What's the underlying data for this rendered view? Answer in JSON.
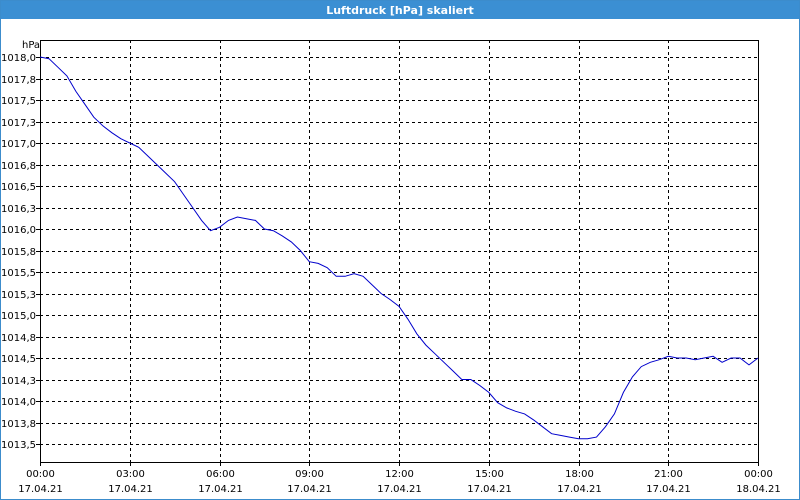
{
  "window": {
    "title": "Luftdruck [hPa] skaliert"
  },
  "chart_data": {
    "type": "line",
    "title": "Luftdruck [hPa] skaliert",
    "xlabel": "",
    "ylabel": "hPa",
    "grid": true,
    "ylim": [
      1013.4,
      1018.0
    ],
    "xlim": [
      0,
      24
    ],
    "yticks": [
      "1018,0",
      "1017,8",
      "1017,5",
      "1017,3",
      "1017,0",
      "1016,8",
      "1016,5",
      "1016,3",
      "1016,0",
      "1015,8",
      "1015,5",
      "1015,3",
      "1015,0",
      "1014,8",
      "1014,5",
      "1014,3",
      "1014,0",
      "1013,8",
      "1013,5"
    ],
    "ytick_values": [
      1018.0,
      1017.75,
      1017.5,
      1017.25,
      1017.0,
      1016.75,
      1016.5,
      1016.25,
      1016.0,
      1015.75,
      1015.5,
      1015.25,
      1015.0,
      1014.75,
      1014.5,
      1014.25,
      1014.0,
      1013.75,
      1013.5
    ],
    "xticks": [
      {
        "time": "00:00",
        "date": "17.04.21"
      },
      {
        "time": "03:00",
        "date": "17.04.21"
      },
      {
        "time": "06:00",
        "date": "17.04.21"
      },
      {
        "time": "09:00",
        "date": "17.04.21"
      },
      {
        "time": "12:00",
        "date": "17.04.21"
      },
      {
        "time": "15:00",
        "date": "17.04.21"
      },
      {
        "time": "18:00",
        "date": "17.04.21"
      },
      {
        "time": "21:00",
        "date": "17.04.21"
      },
      {
        "time": "00:00",
        "date": "18.04.21"
      }
    ],
    "series": [
      {
        "color": "#0000cc",
        "x": [
          0.0,
          0.3,
          0.6,
          0.9,
          1.2,
          1.5,
          1.8,
          2.1,
          2.4,
          2.7,
          3.0,
          3.3,
          3.6,
          3.9,
          4.2,
          4.5,
          4.8,
          5.1,
          5.4,
          5.7,
          6.0,
          6.3,
          6.6,
          6.9,
          7.2,
          7.5,
          7.8,
          8.1,
          8.4,
          8.7,
          9.0,
          9.3,
          9.6,
          9.9,
          10.2,
          10.5,
          10.8,
          11.1,
          11.4,
          11.7,
          12.0,
          12.3,
          12.6,
          12.9,
          13.2,
          13.5,
          13.8,
          14.1,
          14.4,
          14.7,
          15.0,
          15.3,
          15.6,
          15.9,
          16.2,
          16.5,
          16.8,
          17.1,
          17.4,
          17.7,
          18.0,
          18.3,
          18.6,
          18.9,
          19.2,
          19.5,
          19.8,
          20.1,
          20.4,
          20.7,
          21.0,
          21.3,
          21.6,
          21.9,
          22.2,
          22.5,
          22.8,
          23.1,
          23.4,
          23.7,
          24.0
        ],
        "values": [
          1018.0,
          1017.98,
          1017.88,
          1017.78,
          1017.6,
          1017.45,
          1017.3,
          1017.2,
          1017.12,
          1017.05,
          1017.0,
          1016.95,
          1016.85,
          1016.75,
          1016.65,
          1016.55,
          1016.4,
          1016.25,
          1016.1,
          1015.98,
          1016.02,
          1016.1,
          1016.14,
          1016.12,
          1016.1,
          1016.0,
          1015.98,
          1015.92,
          1015.85,
          1015.75,
          1015.62,
          1015.6,
          1015.55,
          1015.45,
          1015.45,
          1015.48,
          1015.45,
          1015.35,
          1015.25,
          1015.18,
          1015.1,
          1014.95,
          1014.78,
          1014.65,
          1014.55,
          1014.45,
          1014.35,
          1014.25,
          1014.25,
          1014.18,
          1014.1,
          1013.98,
          1013.92,
          1013.88,
          1013.85,
          1013.78,
          1013.7,
          1013.62,
          1013.6,
          1013.58,
          1013.56,
          1013.56,
          1013.58,
          1013.7,
          1013.85,
          1014.1,
          1014.28,
          1014.4,
          1014.45,
          1014.48,
          1014.52,
          1014.5,
          1014.5,
          1014.48,
          1014.5,
          1014.52,
          1014.45,
          1014.5,
          1014.5,
          1014.42,
          1014.5
        ]
      }
    ]
  }
}
